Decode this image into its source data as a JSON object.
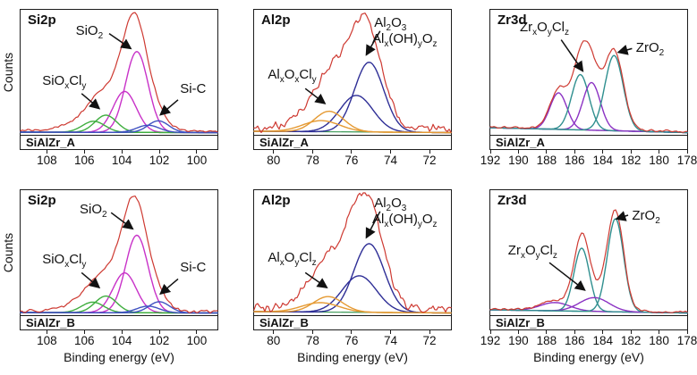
{
  "figure": {
    "background": "#ffffff"
  },
  "axis": {
    "xlabel": "Binding energy (eV)",
    "ylabel": "Counts"
  },
  "colors": {
    "envelope_red": "#ce3a32",
    "magenta": "#c832c8",
    "green": "#3fae3f",
    "blue": "#3f51c1",
    "navy": "#2e2e96",
    "orange": "#e59a33",
    "teal": "#2f8f8f",
    "purple": "#8b32c3",
    "baseline_green": "#3d9a57",
    "axis_black": "#1c1c1c",
    "text": "#111111"
  },
  "chart_data": [
    {
      "id": "si2p_a",
      "type": "line",
      "row": 0,
      "col": 0,
      "title": "Si2p",
      "sample": "SiAlZr_A",
      "x_range": [
        109.4,
        98.9
      ],
      "x_ticks": [
        108,
        106,
        104,
        102,
        100
      ],
      "show_xlabel": false,
      "show_ylabel": true,
      "baseline": {
        "color": "#3d9a57",
        "offsets": [
          3,
          2.5
        ]
      },
      "envelope": {
        "color": "#ce3a32",
        "scale": 1.04,
        "base": 0.012,
        "noise": 0.013,
        "seed": 7,
        "extra": [
          {
            "center": 105.8,
            "height": 0.1,
            "sigma": 1.1
          }
        ]
      },
      "peaks": [
        {
          "name": "SiO2-main",
          "color": "#c832c8",
          "center": 103.2,
          "height": 0.73,
          "sigma": 0.6
        },
        {
          "name": "SiO2-2nd",
          "color": "#c832c8",
          "center": 103.85,
          "height": 0.37,
          "sigma": 0.62
        },
        {
          "name": "SiOxCly-main",
          "color": "#3fae3f",
          "center": 104.85,
          "height": 0.155,
          "sigma": 0.58
        },
        {
          "name": "SiOxCly-2nd",
          "color": "#3fae3f",
          "center": 105.5,
          "height": 0.1,
          "sigma": 0.6
        },
        {
          "name": "Si-C-main",
          "color": "#3f51c1",
          "center": 102.05,
          "height": 0.105,
          "sigma": 0.55
        },
        {
          "name": "Si-C-2nd",
          "color": "#3f51c1",
          "center": 102.6,
          "height": 0.065,
          "sigma": 0.6
        }
      ],
      "annotations": [
        {
          "text": "SiO~2~",
          "x": 28,
          "y": 11,
          "arrow": [
            45,
            19,
            56,
            31
          ]
        },
        {
          "text": "SiO~x~Cl~y~",
          "x": 11,
          "y": 51,
          "arrow": [
            31,
            67,
            40,
            79
          ]
        },
        {
          "text": "Si-C",
          "x": 81,
          "y": 57,
          "arrow": [
            80,
            72,
            71,
            84
          ]
        }
      ]
    },
    {
      "id": "al2p_a",
      "type": "line",
      "row": 0,
      "col": 1,
      "title": "Al2p",
      "sample": "SiAlZr_A",
      "x_range": [
        81.0,
        70.9
      ],
      "x_ticks": [
        80,
        78,
        76,
        74,
        72
      ],
      "show_xlabel": false,
      "show_ylabel": false,
      "baseline": {
        "color": "#3d9a57",
        "offsets": [
          4,
          2.5
        ]
      },
      "envelope": {
        "color": "#ce3a32",
        "scale": 1.02,
        "base": 0.03,
        "noise": 0.05,
        "seed": 3,
        "extra": [
          {
            "center": 76.8,
            "height": 0.18,
            "sigma": 1.2
          }
        ]
      },
      "peaks": [
        {
          "name": "Al2O3-main",
          "color": "#2e2e96",
          "center": 75.1,
          "height": 0.63,
          "sigma": 0.75
        },
        {
          "name": "Al2O3-2nd",
          "color": "#2e2e96",
          "center": 75.75,
          "height": 0.33,
          "sigma": 0.85
        },
        {
          "name": "AlxOxCly-main",
          "color": "#e59a33",
          "center": 77.15,
          "height": 0.185,
          "sigma": 0.75
        },
        {
          "name": "AlxOxCly-2nd",
          "color": "#e59a33",
          "center": 77.55,
          "height": 0.1,
          "sigma": 0.95
        }
      ],
      "annotations": [
        {
          "text": "Al~2~O~3~",
          "x": 61,
          "y": 4,
          "arrow": [
            64,
            17,
            57,
            36
          ]
        },
        {
          "text": "Al~x~(OH)~y~O~z~",
          "x": 60,
          "y": 17,
          "arrow": null
        },
        {
          "text": "Al~x~O~x~Cl~y~",
          "x": 7,
          "y": 46,
          "arrow": [
            26,
            63,
            36,
            75
          ]
        }
      ]
    },
    {
      "id": "zr3d_a",
      "type": "line",
      "row": 0,
      "col": 2,
      "title": "Zr3d",
      "sample": "SiAlZr_A",
      "x_range": [
        192,
        178
      ],
      "x_ticks": [
        192,
        190,
        188,
        186,
        184,
        182,
        180,
        178
      ],
      "show_xlabel": false,
      "show_ylabel": false,
      "baseline": {
        "color": "#3d9a57",
        "offsets": [
          8,
          2.5
        ]
      },
      "envelope": {
        "color": "#ce3a32",
        "scale": 1.05,
        "base": 0.01,
        "noise": 0.012,
        "seed": 5,
        "extra": []
      },
      "peaks": [
        {
          "name": "ZrxOyClz-main",
          "color": "#8b32c3",
          "center": 187.15,
          "height": 0.33,
          "sigma": 0.6
        },
        {
          "name": "ZrO2-2nd",
          "color": "#2f8f8f",
          "center": 185.6,
          "height": 0.5,
          "sigma": 0.62
        },
        {
          "name": "ZrxOyClz-2nd",
          "color": "#8b32c3",
          "center": 184.8,
          "height": 0.43,
          "sigma": 0.62
        },
        {
          "name": "ZrO2-main",
          "color": "#2f8f8f",
          "center": 183.2,
          "height": 0.68,
          "sigma": 0.65
        }
      ],
      "annotations": [
        {
          "text": "Zr~x~O~y~Cl~z~",
          "x": 15,
          "y": 8,
          "arrow": [
            36,
            24,
            47,
            49
          ]
        },
        {
          "text": "ZrO~2~",
          "x": 74,
          "y": 24,
          "arrow": [
            72,
            31,
            65,
            34
          ]
        }
      ]
    },
    {
      "id": "si2p_b",
      "type": "line",
      "row": 1,
      "col": 0,
      "title": "Si2p",
      "sample": "SiAlZr_B",
      "x_range": [
        109.4,
        98.9
      ],
      "x_ticks": [
        108,
        106,
        104,
        102,
        100
      ],
      "show_xlabel": true,
      "show_ylabel": true,
      "baseline": {
        "color": "#3d9a57",
        "offsets": [
          3,
          2.5
        ]
      },
      "envelope": {
        "color": "#ce3a32",
        "scale": 1.06,
        "base": 0.012,
        "noise": 0.015,
        "seed": 13,
        "extra": [
          {
            "center": 105.8,
            "height": 0.09,
            "sigma": 1.1
          }
        ]
      },
      "peaks": [
        {
          "name": "SiO2-main",
          "color": "#c832c8",
          "center": 103.2,
          "height": 0.7,
          "sigma": 0.6
        },
        {
          "name": "SiO2-2nd",
          "color": "#c832c8",
          "center": 103.85,
          "height": 0.36,
          "sigma": 0.62
        },
        {
          "name": "SiOxCly-main",
          "color": "#3fae3f",
          "center": 104.85,
          "height": 0.15,
          "sigma": 0.58
        },
        {
          "name": "SiOxCly-2nd",
          "color": "#3fae3f",
          "center": 105.55,
          "height": 0.095,
          "sigma": 0.6
        },
        {
          "name": "Si-C-main",
          "color": "#3f51c1",
          "center": 102.0,
          "height": 0.1,
          "sigma": 0.55
        },
        {
          "name": "Si-C-2nd",
          "color": "#3f51c1",
          "center": 102.6,
          "height": 0.06,
          "sigma": 0.6
        }
      ],
      "annotations": [
        {
          "text": "SiO~2~",
          "x": 30,
          "y": 9,
          "arrow": [
            46,
            18,
            57,
            31
          ]
        },
        {
          "text": "SiO~x~Cl~y~",
          "x": 11,
          "y": 49,
          "arrow": [
            31,
            66,
            40,
            78
          ]
        },
        {
          "text": "Si-C",
          "x": 81,
          "y": 56,
          "arrow": [
            80,
            71,
            71,
            83
          ]
        }
      ]
    },
    {
      "id": "al2p_b",
      "type": "line",
      "row": 1,
      "col": 1,
      "title": "Al2p",
      "sample": "SiAlZr_B",
      "x_range": [
        81.0,
        70.9
      ],
      "x_ticks": [
        80,
        78,
        76,
        74,
        72
      ],
      "show_xlabel": true,
      "show_ylabel": false,
      "baseline": {
        "color": "#3d9a57",
        "offsets": [
          4,
          2.5
        ]
      },
      "envelope": {
        "color": "#ce3a32",
        "scale": 1.05,
        "base": 0.03,
        "noise": 0.05,
        "seed": 21,
        "extra": [
          {
            "center": 76.8,
            "height": 0.2,
            "sigma": 1.2
          }
        ]
      },
      "peaks": [
        {
          "name": "Al2O3-main",
          "color": "#2e2e96",
          "center": 75.1,
          "height": 0.62,
          "sigma": 0.78
        },
        {
          "name": "Al2O3-2nd",
          "color": "#2e2e96",
          "center": 75.6,
          "height": 0.33,
          "sigma": 0.88
        },
        {
          "name": "AlxOyClz-main",
          "color": "#e59a33",
          "center": 77.2,
          "height": 0.14,
          "sigma": 0.75
        },
        {
          "name": "AlxOyClz-2nd",
          "color": "#e59a33",
          "center": 77.6,
          "height": 0.085,
          "sigma": 0.95
        }
      ],
      "annotations": [
        {
          "text": "Al~2~O~3~",
          "x": 61,
          "y": 4,
          "arrow": [
            64,
            17,
            57,
            38
          ]
        },
        {
          "text": "Al~x~(OH)~y~O~z~",
          "x": 60,
          "y": 17,
          "arrow": null
        },
        {
          "text": "Al~x~O~y~Cl~z~",
          "x": 7,
          "y": 48,
          "arrow": [
            26,
            66,
            37,
            78
          ]
        }
      ]
    },
    {
      "id": "zr3d_b",
      "type": "line",
      "row": 1,
      "col": 2,
      "title": "Zr3d",
      "sample": "SiAlZr_B",
      "x_range": [
        192,
        178
      ],
      "x_ticks": [
        192,
        190,
        188,
        186,
        184,
        182,
        180,
        178
      ],
      "show_xlabel": true,
      "show_ylabel": false,
      "baseline": {
        "color": "#3d9a57",
        "offsets": [
          6,
          2.5
        ]
      },
      "envelope": {
        "color": "#ce3a32",
        "scale": 1.03,
        "base": 0.008,
        "noise": 0.012,
        "seed": 11,
        "extra": []
      },
      "peaks": [
        {
          "name": "ZrxOyClz-main",
          "color": "#8b32c3",
          "center": 187.4,
          "height": 0.075,
          "sigma": 1.05
        },
        {
          "name": "ZrO2-2nd",
          "color": "#2f8f8f",
          "center": 185.5,
          "height": 0.57,
          "sigma": 0.55
        },
        {
          "name": "ZrxOyClz-2nd",
          "color": "#8b32c3",
          "center": 184.6,
          "height": 0.125,
          "sigma": 1.05
        },
        {
          "name": "ZrO2-main",
          "color": "#2f8f8f",
          "center": 183.1,
          "height": 0.84,
          "sigma": 0.58
        }
      ],
      "annotations": [
        {
          "text": "Zr~x~O~y~Cl~z~",
          "x": 9,
          "y": 42,
          "arrow": [
            30,
            58,
            48,
            80
          ]
        },
        {
          "text": "ZrO~2~",
          "x": 72,
          "y": 14,
          "arrow": [
            70,
            20,
            64,
            23
          ]
        }
      ]
    }
  ]
}
